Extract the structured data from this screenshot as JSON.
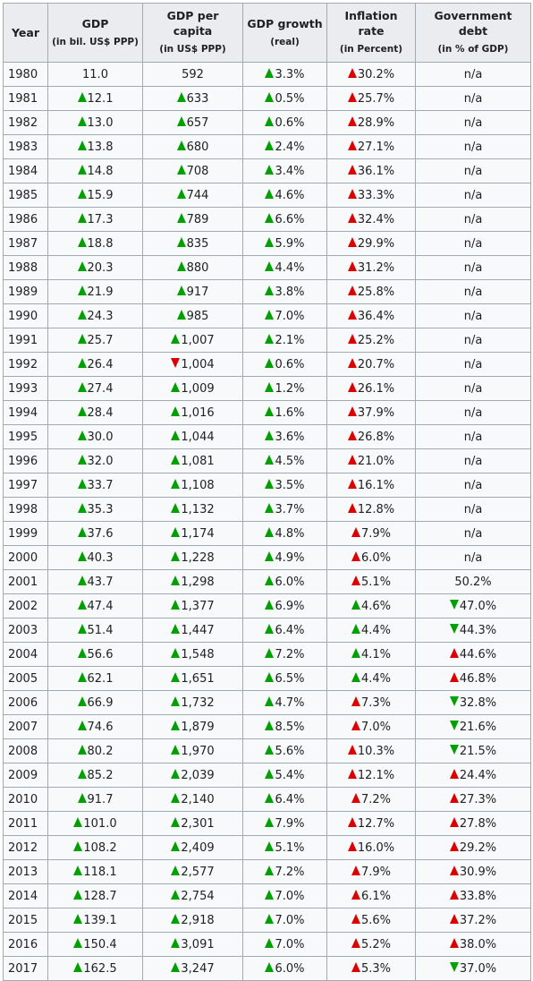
{
  "headers": [
    {
      "title": "Year",
      "sub": ""
    },
    {
      "title": "GDP",
      "sub": "(in bil. US$ PPP)"
    },
    {
      "title": "GDP per capita",
      "sub": "(in US$ PPP)"
    },
    {
      "title": "GDP growth",
      "sub": "(real)"
    },
    {
      "title": "Inflation rate",
      "sub": "(in Percent)"
    },
    {
      "title": "Government debt",
      "sub": "(in % of GDP)"
    }
  ],
  "rows": [
    [
      "1980",
      "|11.0",
      "|592",
      "gu|3.3%",
      "ru|30.2%",
      "|n/a"
    ],
    [
      "1981",
      "gu|12.1",
      "gu|633",
      "gu|0.5%",
      "ru|25.7%",
      "|n/a"
    ],
    [
      "1982",
      "gu|13.0",
      "gu|657",
      "gu|0.6%",
      "ru|28.9%",
      "|n/a"
    ],
    [
      "1983",
      "gu|13.8",
      "gu|680",
      "gu|2.4%",
      "ru|27.1%",
      "|n/a"
    ],
    [
      "1984",
      "gu|14.8",
      "gu|708",
      "gu|3.4%",
      "ru|36.1%",
      "|n/a"
    ],
    [
      "1985",
      "gu|15.9",
      "gu|744",
      "gu|4.6%",
      "ru|33.3%",
      "|n/a"
    ],
    [
      "1986",
      "gu|17.3",
      "gu|789",
      "gu|6.6%",
      "ru|32.4%",
      "|n/a"
    ],
    [
      "1987",
      "gu|18.8",
      "gu|835",
      "gu|5.9%",
      "ru|29.9%",
      "|n/a"
    ],
    [
      "1988",
      "gu|20.3",
      "gu|880",
      "gu|4.4%",
      "ru|31.2%",
      "|n/a"
    ],
    [
      "1989",
      "gu|21.9",
      "gu|917",
      "gu|3.8%",
      "ru|25.8%",
      "|n/a"
    ],
    [
      "1990",
      "gu|24.3",
      "gu|985",
      "gu|7.0%",
      "ru|36.4%",
      "|n/a"
    ],
    [
      "1991",
      "gu|25.7",
      "gu|1,007",
      "gu|2.1%",
      "ru|25.2%",
      "|n/a"
    ],
    [
      "1992",
      "gu|26.4",
      "rd|1,004",
      "gu|0.6%",
      "ru|20.7%",
      "|n/a"
    ],
    [
      "1993",
      "gu|27.4",
      "gu|1,009",
      "gu|1.2%",
      "ru|26.1%",
      "|n/a"
    ],
    [
      "1994",
      "gu|28.4",
      "gu|1,016",
      "gu|1.6%",
      "ru|37.9%",
      "|n/a"
    ],
    [
      "1995",
      "gu|30.0",
      "gu|1,044",
      "gu|3.6%",
      "ru|26.8%",
      "|n/a"
    ],
    [
      "1996",
      "gu|32.0",
      "gu|1,081",
      "gu|4.5%",
      "ru|21.0%",
      "|n/a"
    ],
    [
      "1997",
      "gu|33.7",
      "gu|1,108",
      "gu|3.5%",
      "ru|16.1%",
      "|n/a"
    ],
    [
      "1998",
      "gu|35.3",
      "gu|1,132",
      "gu|3.7%",
      "ru|12.8%",
      "|n/a"
    ],
    [
      "1999",
      "gu|37.6",
      "gu|1,174",
      "gu|4.8%",
      "ru|7.9%",
      "|n/a"
    ],
    [
      "2000",
      "gu|40.3",
      "gu|1,228",
      "gu|4.9%",
      "ru|6.0%",
      "|n/a"
    ],
    [
      "2001",
      "gu|43.7",
      "gu|1,298",
      "gu|6.0%",
      "ru|5.1%",
      "|50.2%"
    ],
    [
      "2002",
      "gu|47.4",
      "gu|1,377",
      "gu|6.9%",
      "gu|4.6%",
      "gd|47.0%"
    ],
    [
      "2003",
      "gu|51.4",
      "gu|1,447",
      "gu|6.4%",
      "gu|4.4%",
      "gd|44.3%"
    ],
    [
      "2004",
      "gu|56.6",
      "gu|1,548",
      "gu|7.2%",
      "gu|4.1%",
      "ru|44.6%"
    ],
    [
      "2005",
      "gu|62.1",
      "gu|1,651",
      "gu|6.5%",
      "gu|4.4%",
      "ru|46.8%"
    ],
    [
      "2006",
      "gu|66.9",
      "gu|1,732",
      "gu|4.7%",
      "ru|7.3%",
      "gd|32.8%"
    ],
    [
      "2007",
      "gu|74.6",
      "gu|1,879",
      "gu|8.5%",
      "ru|7.0%",
      "gd|21.6%"
    ],
    [
      "2008",
      "gu|80.2",
      "gu|1,970",
      "gu|5.6%",
      "ru|10.3%",
      "gd|21.5%"
    ],
    [
      "2009",
      "gu|85.2",
      "gu|2,039",
      "gu|5.4%",
      "ru|12.1%",
      "ru|24.4%"
    ],
    [
      "2010",
      "gu|91.7",
      "gu|2,140",
      "gu|6.4%",
      "ru|7.2%",
      "ru|27.3%"
    ],
    [
      "2011",
      "gu|101.0",
      "gu|2,301",
      "gu|7.9%",
      "ru|12.7%",
      "ru|27.8%"
    ],
    [
      "2012",
      "gu|108.2",
      "gu|2,409",
      "gu|5.1%",
      "ru|16.0%",
      "ru|29.2%"
    ],
    [
      "2013",
      "gu|118.1",
      "gu|2,577",
      "gu|7.2%",
      "ru|7.9%",
      "ru|30.9%"
    ],
    [
      "2014",
      "gu|128.7",
      "gu|2,754",
      "gu|7.0%",
      "ru|6.1%",
      "ru|33.8%"
    ],
    [
      "2015",
      "gu|139.1",
      "gu|2,918",
      "gu|7.0%",
      "ru|5.6%",
      "ru|37.2%"
    ],
    [
      "2016",
      "gu|150.4",
      "gu|3,091",
      "gu|7.0%",
      "ru|5.2%",
      "ru|38.0%"
    ],
    [
      "2017",
      "gu|162.5",
      "gu|3,247",
      "gu|6.0%",
      "ru|5.3%",
      "gd|37.0%"
    ]
  ]
}
